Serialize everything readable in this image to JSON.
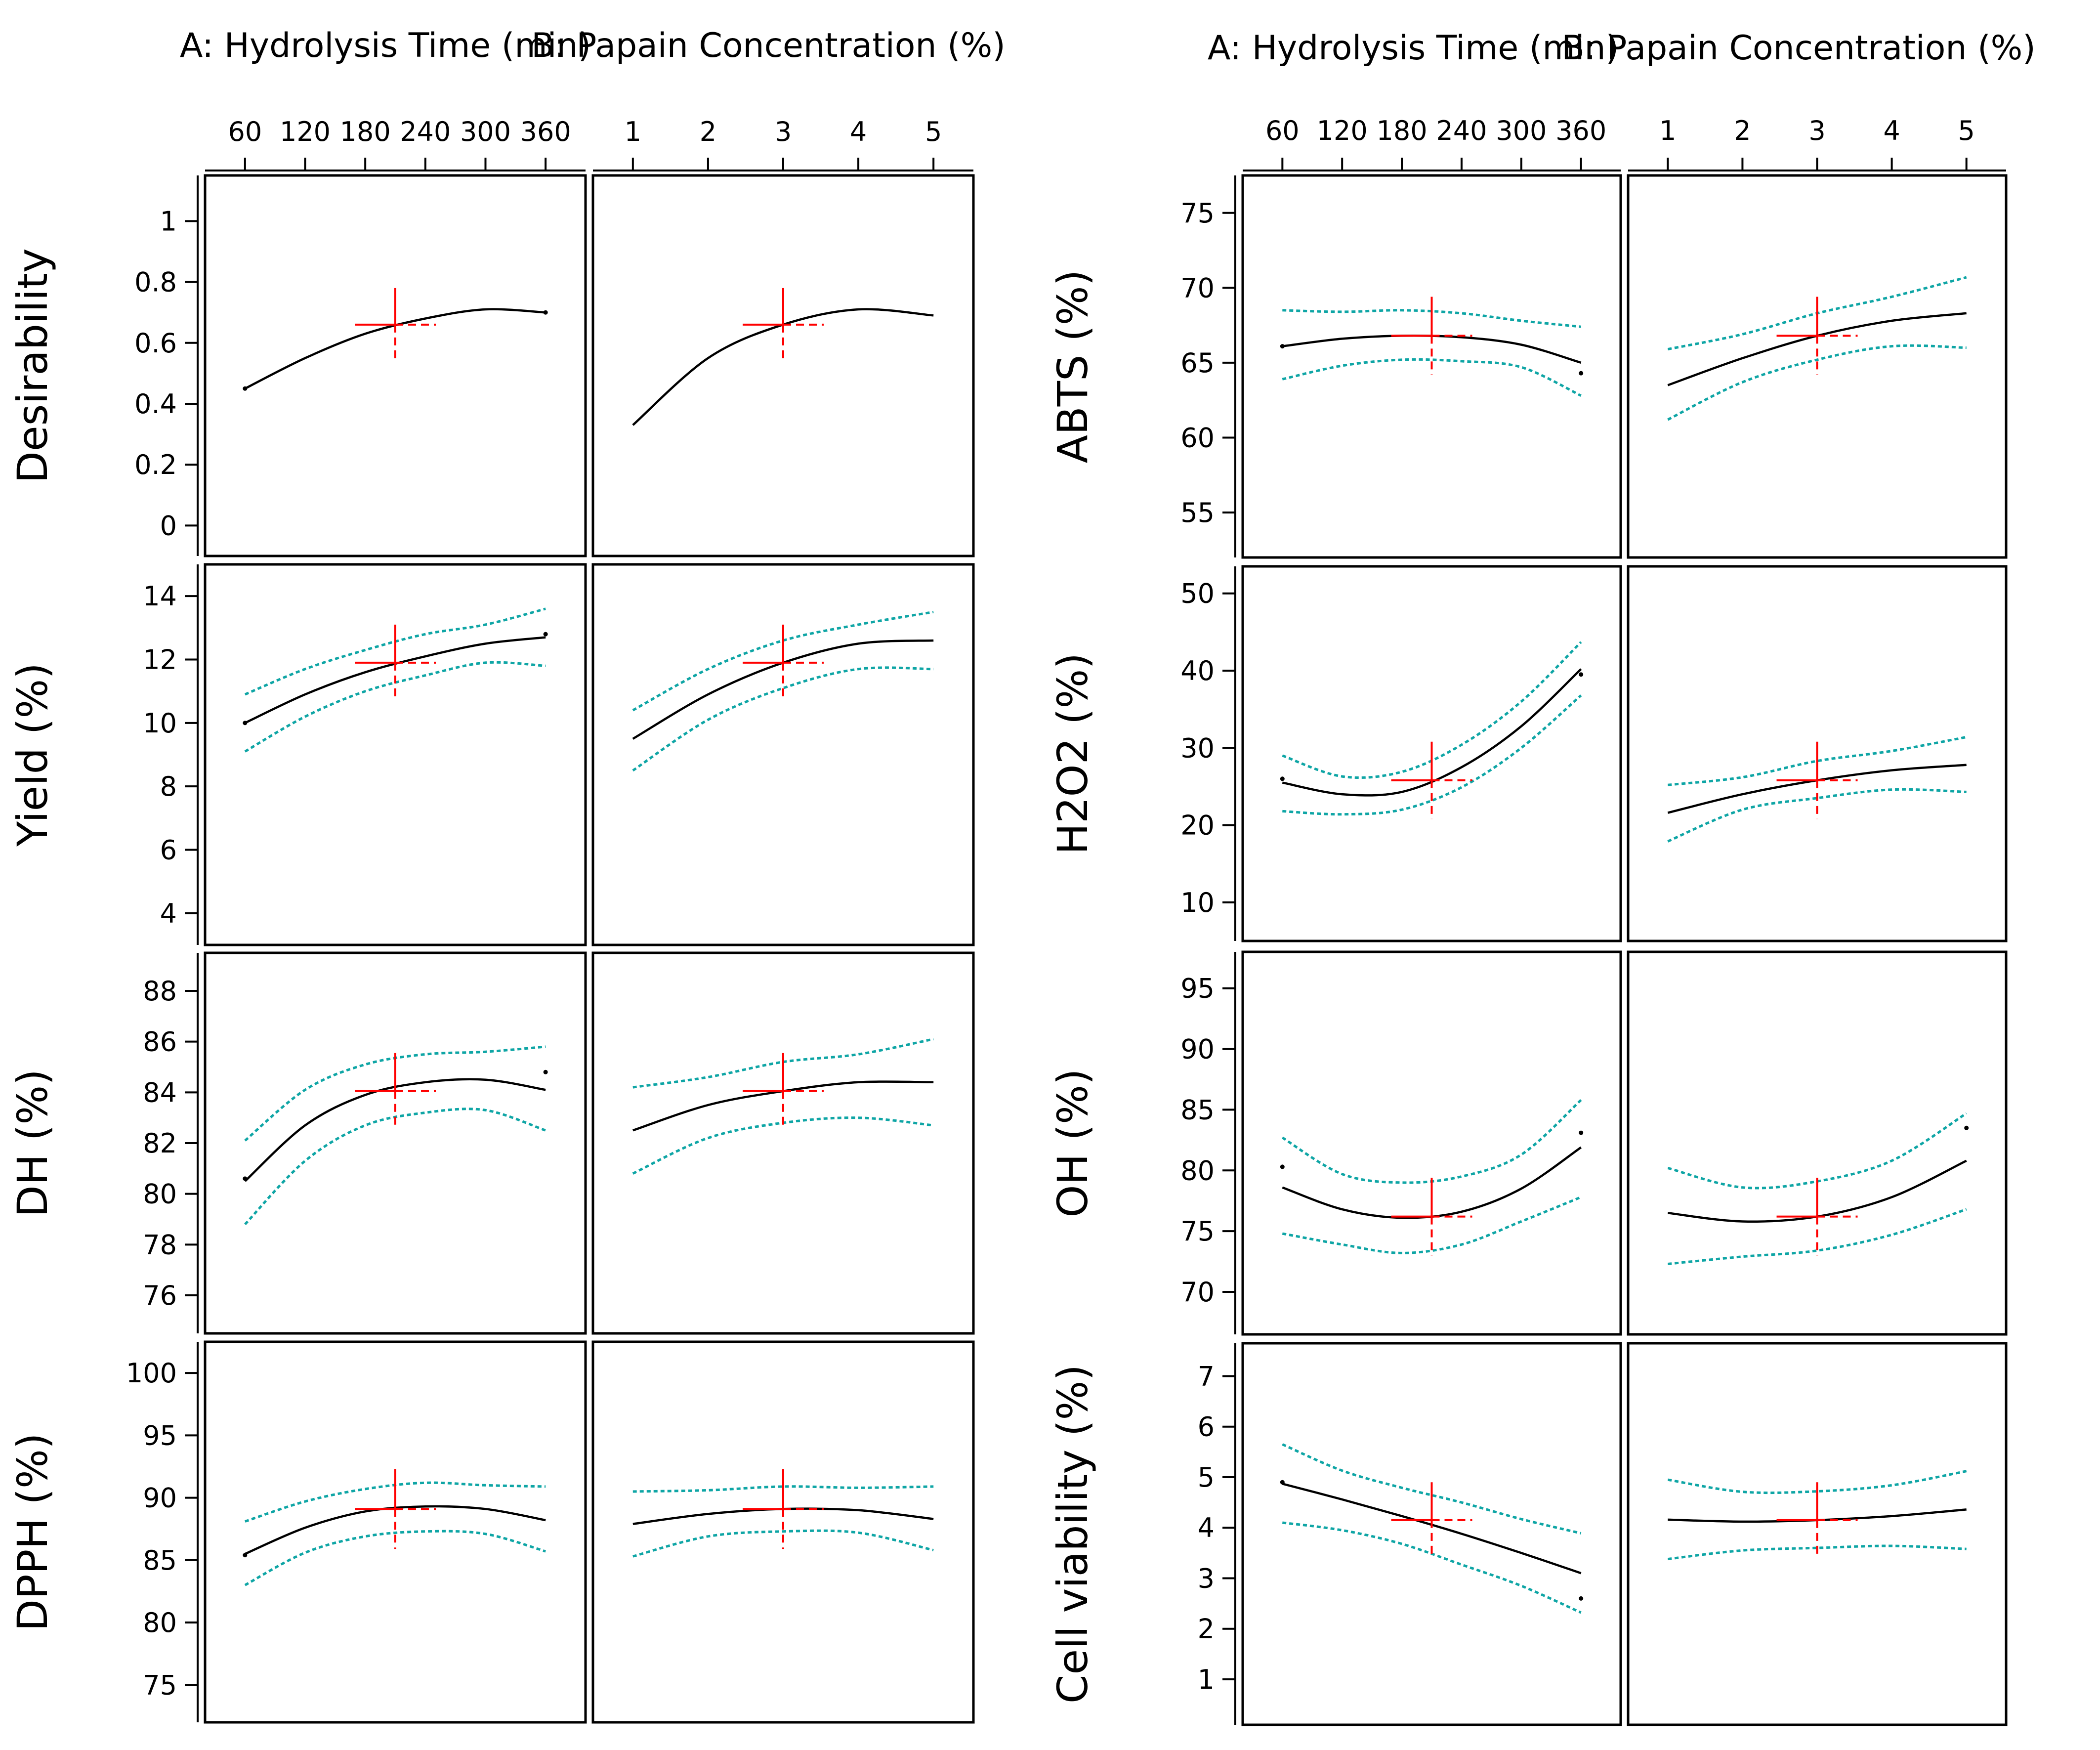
{
  "colors": {
    "curve": "#000000",
    "ci": "#0ea5a5",
    "marker": "#ff0000",
    "frame": "#000000"
  },
  "chart_data": [
    {
      "type": "line",
      "id": "desirability",
      "group": "left",
      "row": 0,
      "ylabel": "Desirability",
      "ylim": [
        -0.1,
        1.15
      ],
      "yticks": [
        0,
        0.2,
        0.4,
        0.6,
        0.8,
        1
      ],
      "ytick_labels": [
        "0",
        "0.2",
        "0.4",
        "0.6",
        "0.8",
        "1"
      ],
      "marker": {
        "y": 0.66,
        "halfspan": 0.12
      },
      "A": {
        "x": [
          60,
          120,
          180,
          240,
          300,
          360
        ],
        "fit": [
          0.45,
          0.55,
          0.63,
          0.68,
          0.71,
          0.7
        ],
        "lower": null,
        "upper": null,
        "points": [
          [
            60,
            0.45
          ],
          [
            360,
            0.7
          ]
        ]
      },
      "B": {
        "x": [
          1,
          2,
          3,
          4,
          5
        ],
        "fit": [
          0.33,
          0.55,
          0.66,
          0.71,
          0.69
        ],
        "lower": null,
        "upper": null,
        "points": []
      }
    },
    {
      "type": "line",
      "id": "yield",
      "group": "left",
      "row": 1,
      "ylabel": "Yield (%)",
      "ylim": [
        3,
        15
      ],
      "yticks": [
        4,
        6,
        8,
        10,
        12,
        14
      ],
      "ytick_labels": [
        "4",
        "6",
        "8",
        "10",
        "12",
        "14"
      ],
      "marker": {
        "y": 11.9,
        "halfspan": 1.2
      },
      "A": {
        "x": [
          60,
          120,
          180,
          240,
          300,
          360
        ],
        "fit": [
          10.0,
          10.9,
          11.6,
          12.1,
          12.5,
          12.7
        ],
        "lower": [
          9.1,
          10.2,
          11.0,
          11.5,
          11.9,
          11.8
        ],
        "upper": [
          10.9,
          11.7,
          12.3,
          12.8,
          13.1,
          13.6
        ],
        "points": [
          [
            60,
            10.0
          ],
          [
            360,
            12.8
          ]
        ]
      },
      "B": {
        "x": [
          1,
          2,
          3,
          4,
          5
        ],
        "fit": [
          9.5,
          10.9,
          11.9,
          12.5,
          12.6
        ],
        "lower": [
          8.5,
          10.1,
          11.1,
          11.7,
          11.7
        ],
        "upper": [
          10.4,
          11.7,
          12.6,
          13.1,
          13.5
        ],
        "points": []
      }
    },
    {
      "type": "line",
      "id": "dh",
      "group": "left",
      "row": 2,
      "ylabel": "DH (%)",
      "ylim": [
        74.5,
        89.5
      ],
      "yticks": [
        76,
        78,
        80,
        82,
        84,
        86,
        88
      ],
      "ytick_labels": [
        "76",
        "78",
        "80",
        "82",
        "84",
        "86",
        "88"
      ],
      "marker": {
        "y": 84.05,
        "halfspan": 1.5
      },
      "A": {
        "x": [
          60,
          120,
          180,
          240,
          300,
          360
        ],
        "fit": [
          80.5,
          82.7,
          83.9,
          84.4,
          84.5,
          84.1
        ],
        "lower": [
          78.8,
          81.3,
          82.7,
          83.2,
          83.3,
          82.5
        ],
        "upper": [
          82.1,
          84.1,
          85.1,
          85.5,
          85.6,
          85.8
        ],
        "points": [
          [
            60,
            80.6
          ],
          [
            360,
            84.8
          ]
        ]
      },
      "B": {
        "x": [
          1,
          2,
          3,
          4,
          5
        ],
        "fit": [
          82.5,
          83.5,
          84.05,
          84.4,
          84.4
        ],
        "lower": [
          80.8,
          82.2,
          82.8,
          83.0,
          82.7
        ],
        "upper": [
          84.2,
          84.6,
          85.2,
          85.5,
          86.1
        ],
        "points": []
      }
    },
    {
      "type": "line",
      "id": "dpph",
      "group": "left",
      "row": 3,
      "ylabel": "DPPH (%)",
      "ylim": [
        72,
        102.5
      ],
      "yticks": [
        75,
        80,
        85,
        90,
        95,
        100
      ],
      "ytick_labels": [
        "75",
        "80",
        "85",
        "90",
        "95",
        "100"
      ],
      "marker": {
        "y": 89.1,
        "halfspan": 3.2
      },
      "A": {
        "x": [
          60,
          120,
          180,
          240,
          300,
          360
        ],
        "fit": [
          85.5,
          87.6,
          88.9,
          89.3,
          89.1,
          88.2
        ],
        "lower": [
          83.0,
          85.6,
          86.9,
          87.3,
          87.1,
          85.7
        ],
        "upper": [
          88.1,
          89.7,
          90.7,
          91.2,
          91.0,
          90.9
        ],
        "points": [
          [
            60,
            85.4
          ]
        ]
      },
      "B": {
        "x": [
          1,
          2,
          3,
          4,
          5
        ],
        "fit": [
          87.9,
          88.7,
          89.1,
          89.0,
          88.3
        ],
        "lower": [
          85.3,
          86.9,
          87.3,
          87.2,
          85.8
        ],
        "upper": [
          90.5,
          90.6,
          90.9,
          90.8,
          90.9
        ],
        "points": []
      }
    },
    {
      "type": "line",
      "id": "abts",
      "group": "right",
      "row": 0,
      "ylabel": "ABTS (%)",
      "ylim": [
        52,
        77.5
      ],
      "yticks": [
        55,
        60,
        65,
        70,
        75
      ],
      "ytick_labels": [
        "55",
        "60",
        "65",
        "70",
        "75"
      ],
      "marker": {
        "y": 66.8,
        "halfspan": 2.6
      },
      "A": {
        "x": [
          60,
          120,
          180,
          240,
          300,
          360
        ],
        "fit": [
          66.1,
          66.6,
          66.8,
          66.7,
          66.2,
          65.0
        ],
        "lower": [
          63.9,
          64.8,
          65.2,
          65.1,
          64.7,
          62.8
        ],
        "upper": [
          68.5,
          68.4,
          68.5,
          68.3,
          67.8,
          67.4
        ],
        "points": [
          [
            60,
            66.1
          ],
          [
            360,
            64.3
          ]
        ]
      },
      "B": {
        "x": [
          1,
          2,
          3,
          4,
          5
        ],
        "fit": [
          63.5,
          65.3,
          66.8,
          67.8,
          68.3
        ],
        "lower": [
          61.2,
          63.7,
          65.2,
          66.1,
          66.0
        ],
        "upper": [
          65.9,
          66.9,
          68.3,
          69.4,
          70.7
        ],
        "points": []
      }
    },
    {
      "type": "line",
      "id": "h2o2",
      "group": "right",
      "row": 1,
      "ylabel": "H2O2 (%)",
      "ylim": [
        5,
        53.5
      ],
      "yticks": [
        10,
        20,
        30,
        40,
        50
      ],
      "ytick_labels": [
        "10",
        "20",
        "30",
        "40",
        "50"
      ],
      "marker": {
        "y": 25.8,
        "halfspan": 5.0
      },
      "A": {
        "x": [
          60,
          120,
          180,
          240,
          300,
          360
        ],
        "fit": [
          25.5,
          24.0,
          24.3,
          27.5,
          32.8,
          40.2
        ],
        "lower": [
          21.8,
          21.4,
          22.0,
          24.9,
          30.0,
          36.8
        ],
        "upper": [
          29.0,
          26.3,
          26.9,
          30.4,
          36.0,
          43.7
        ],
        "points": [
          [
            60,
            26.0
          ],
          [
            360,
            39.5
          ]
        ]
      },
      "B": {
        "x": [
          1,
          2,
          3,
          4,
          5
        ],
        "fit": [
          21.6,
          24.0,
          25.8,
          27.1,
          27.8
        ],
        "lower": [
          17.9,
          22.0,
          23.5,
          24.6,
          24.3
        ],
        "upper": [
          25.2,
          26.2,
          28.3,
          29.6,
          31.4
        ],
        "points": []
      }
    },
    {
      "type": "line",
      "id": "oh",
      "group": "right",
      "row": 2,
      "ylabel": "OH (%)",
      "ylim": [
        66.5,
        98
      ],
      "yticks": [
        70,
        75,
        80,
        85,
        90,
        95
      ],
      "ytick_labels": [
        "70",
        "75",
        "80",
        "85",
        "90",
        "95"
      ],
      "marker": {
        "y": 76.2,
        "halfspan": 3.2
      },
      "A": {
        "x": [
          60,
          120,
          180,
          240,
          300,
          360
        ],
        "fit": [
          78.6,
          76.8,
          76.1,
          76.6,
          78.5,
          81.9
        ],
        "lower": [
          74.8,
          73.9,
          73.2,
          73.9,
          75.8,
          77.8
        ],
        "upper": [
          82.7,
          79.7,
          79.0,
          79.5,
          81.3,
          85.8
        ],
        "points": [
          [
            60,
            80.3
          ],
          [
            360,
            83.1
          ]
        ]
      },
      "B": {
        "x": [
          1,
          2,
          3,
          4,
          5
        ],
        "fit": [
          76.5,
          75.8,
          76.2,
          77.8,
          80.8
        ],
        "lower": [
          72.3,
          72.9,
          73.4,
          74.7,
          76.8
        ],
        "upper": [
          80.2,
          78.6,
          79.1,
          80.8,
          84.7
        ],
        "points": [
          [
            5,
            83.5
          ]
        ]
      }
    },
    {
      "type": "line",
      "id": "cell_viability",
      "group": "right",
      "row": 3,
      "ylabel": "Cell viability (%)",
      "ylim": [
        0.1,
        7.65
      ],
      "yticks": [
        1,
        2,
        3,
        4,
        5,
        6,
        7
      ],
      "ytick_labels": [
        "1",
        "2",
        "3",
        "4",
        "5",
        "6",
        "7"
      ],
      "marker": {
        "y": 4.15,
        "halfspan": 0.75
      },
      "A": {
        "x": [
          60,
          120,
          180,
          240,
          300,
          360
        ],
        "fit": [
          4.87,
          4.56,
          4.23,
          3.88,
          3.5,
          3.1
        ],
        "lower": [
          4.1,
          3.95,
          3.68,
          3.27,
          2.85,
          2.32
        ],
        "upper": [
          5.65,
          5.13,
          4.79,
          4.5,
          4.17,
          3.89
        ],
        "points": [
          [
            60,
            4.9
          ],
          [
            360,
            2.6
          ]
        ]
      },
      "B": {
        "x": [
          1,
          2,
          3,
          4,
          5
        ],
        "fit": [
          4.16,
          4.12,
          4.15,
          4.23,
          4.36
        ],
        "lower": [
          3.38,
          3.55,
          3.6,
          3.64,
          3.58
        ],
        "upper": [
          4.95,
          4.71,
          4.72,
          4.84,
          5.12
        ],
        "points": []
      }
    }
  ],
  "factors": {
    "A": {
      "title": "A: Hydrolysis Time (min)",
      "range": [
        60,
        360
      ],
      "ticks": [
        60,
        120,
        180,
        240,
        300,
        360
      ],
      "tick_labels": [
        "60",
        "120",
        "180",
        "240",
        "300",
        "360"
      ],
      "marker_x": 210
    },
    "B": {
      "title": "B: Papain Concentration (%)",
      "range": [
        1,
        5
      ],
      "ticks": [
        1,
        2,
        3,
        4,
        5
      ],
      "tick_labels": [
        "1",
        "2",
        "3",
        "4",
        "5"
      ],
      "marker_x": 3
    }
  }
}
